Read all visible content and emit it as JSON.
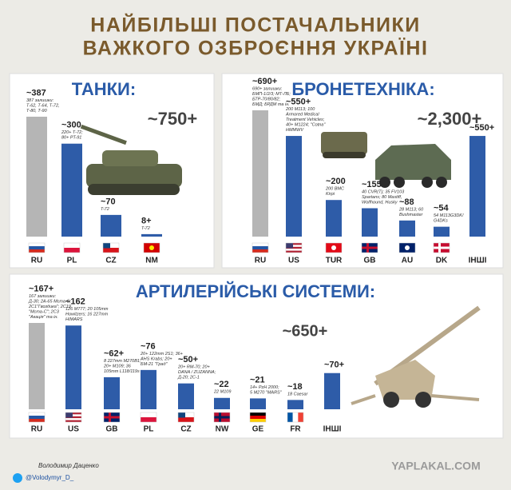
{
  "header": {
    "title_lines": [
      "НАЙБІЛЬШІ ПОСТАЧАЛЬНИКИ",
      "ВАЖКОГО ОЗБРОЄННЯ УКРАЇНІ"
    ]
  },
  "chart_data": [
    {
      "type": "bar",
      "title": "ТАНКИ:",
      "total": "~750+",
      "categories": [
        "RU",
        "PL",
        "CZ",
        "NM"
      ],
      "values": [
        387,
        300,
        70,
        8
      ],
      "value_labels": [
        "~387",
        "~300",
        "~70",
        "8+"
      ],
      "notes": [
        [
          "387 залишки:",
          "Т-62, Т-64, Т-72,",
          "Т-80, Т-90"
        ],
        [
          "220+ Т-72;",
          "80+ PT-91"
        ],
        [
          "T-72"
        ],
        [
          "T-72"
        ]
      ],
      "colors": [
        "#b5b5b5",
        "#2e5ca8",
        "#2e5ca8",
        "#2e5ca8"
      ]
    },
    {
      "type": "bar",
      "title": "БРОНЕТЕХНІКА:",
      "total": "~2,300+",
      "categories": [
        "RU",
        "US",
        "TUR",
        "GB",
        "AU",
        "DK",
        "ІНШІ"
      ],
      "values": [
        690,
        550,
        200,
        155,
        88,
        54,
        550
      ],
      "value_labels": [
        "~690+",
        "~550+",
        "~200",
        "~155",
        "~88",
        "~54",
        "~550+"
      ],
      "notes": [
        [
          "690+ залишки:",
          "БМП-1/2/3; МТ-ЛБ;",
          "БТР-70/80/82;",
          "БМД; БРДМ та ін."
        ],
        [
          "200 M113; 100",
          "Armored Medical",
          "Treatment Vehicles;",
          "40+ M1224; \"Cotna\"",
          "HMMWV"
        ],
        [
          "200 BMC",
          "Kirpi"
        ],
        [
          "40 CVR(T); 35 FV103",
          "Spartans; 80 Mastiff,",
          "Wolfhound, Husky"
        ],
        [
          "28 M113; 60",
          "Bushmaster"
        ],
        [
          "54 M113G3DK/",
          "G4DKs"
        ],
        null
      ],
      "colors": [
        "#b5b5b5",
        "#2e5ca8",
        "#2e5ca8",
        "#2e5ca8",
        "#2e5ca8",
        "#2e5ca8",
        "#2e5ca8"
      ]
    },
    {
      "type": "bar",
      "title": "АРТИЛЕРІЙСЬКІ СИСТЕМИ:",
      "total": "~650+",
      "categories": [
        "RU",
        "US",
        "GB",
        "PL",
        "CZ",
        "NW",
        "GE",
        "FR",
        "ІНШІ"
      ],
      "values": [
        167,
        162,
        62,
        76,
        50,
        22,
        21,
        18,
        70
      ],
      "value_labels": [
        "~167+",
        "~162",
        "~62+",
        "~76",
        "~50+",
        "~22",
        "~21",
        "~18",
        "~70+"
      ],
      "notes": [
        [
          "167 залишки:",
          "Д-30; 2А-65 Мста-Б;",
          "2С1\"Гвоздика\"; 2С19",
          "\"Мста-С\"; 2С3",
          "\"Акація\" та ін."
        ],
        [
          "126 M777; 20 105mm",
          "Howitzers; 16 227mm",
          "HIMARS"
        ],
        [
          "8 227mm M270B1;",
          "20+ M109; 36",
          "105mm L118/119s"
        ],
        [
          "20+ 122mm 2S1; 36+",
          "AHS Krabs; 20+",
          "БМ-21 \"Град\""
        ],
        [
          "20+ RM-70; 20+",
          "DANA / ZUZANNA;",
          "Д-20; 2С-1"
        ],
        [
          "22 M109"
        ],
        [
          "14+ PzH 2000;",
          "5 M270 \"MARS\""
        ],
        [
          "18 Caesar"
        ],
        null
      ],
      "colors": [
        "#b5b5b5",
        "#2e5ca8",
        "#2e5ca8",
        "#2e5ca8",
        "#2e5ca8",
        "#2e5ca8",
        "#2e5ca8",
        "#2e5ca8",
        "#2e5ca8"
      ]
    }
  ],
  "footer": {
    "author": "Володимир Даценко",
    "handle": "@Volodymyr_D_",
    "watermark": "YAPLAKAL.COM"
  }
}
